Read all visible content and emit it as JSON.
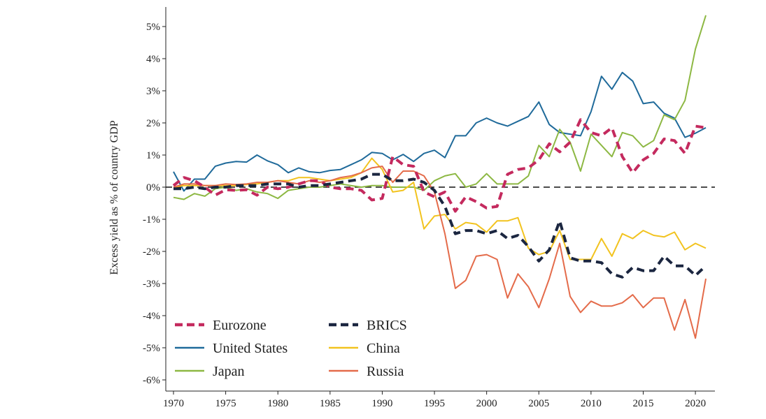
{
  "chart_data": {
    "type": "line",
    "title": "",
    "xlabel": "",
    "ylabel": "Excess yield as % of country GDP",
    "xlim": [
      1970,
      2021
    ],
    "ylim": [
      -6,
      5.5
    ],
    "x_ticks": [
      1970,
      1975,
      1980,
      1985,
      1990,
      1995,
      2000,
      2005,
      2010,
      2015,
      2020
    ],
    "x_tick_labels": [
      "1970",
      "1975",
      "1980",
      "1985",
      "1990",
      "1995",
      "2000",
      "2005",
      "2010",
      "2015",
      "2020"
    ],
    "y_ticks": [
      -6,
      -5,
      -4,
      -3,
      -2,
      -1,
      0,
      1,
      2,
      3,
      4,
      5
    ],
    "y_tick_labels": [
      "-6%",
      "-5%",
      "-4%",
      "-3%",
      "-2%",
      "-1%",
      "0%",
      "1%",
      "2%",
      "3%",
      "4%",
      "5%"
    ],
    "grid": false,
    "zero_line": "dashed",
    "legend_position": "bottom-left",
    "x": [
      1970,
      1971,
      1972,
      1973,
      1974,
      1975,
      1976,
      1977,
      1978,
      1979,
      1980,
      1981,
      1982,
      1983,
      1984,
      1985,
      1986,
      1987,
      1988,
      1989,
      1990,
      1991,
      1992,
      1993,
      1994,
      1995,
      1996,
      1997,
      1998,
      1999,
      2000,
      2001,
      2002,
      2003,
      2004,
      2005,
      2006,
      2007,
      2008,
      2009,
      2010,
      2011,
      2012,
      2013,
      2014,
      2015,
      2016,
      2017,
      2018,
      2019,
      2020,
      2021
    ],
    "series": [
      {
        "name": "United States",
        "color": "#1f6a9a",
        "dash": "solid",
        "values": [
          0.48,
          -0.12,
          0.25,
          0.25,
          0.65,
          0.75,
          0.8,
          0.78,
          1.0,
          0.82,
          0.7,
          0.45,
          0.6,
          0.48,
          0.45,
          0.52,
          0.55,
          0.7,
          0.85,
          1.08,
          1.05,
          0.85,
          1.02,
          0.8,
          1.05,
          1.15,
          0.92,
          1.6,
          1.6,
          2.0,
          2.15,
          2.0,
          1.9,
          2.05,
          2.2,
          2.65,
          1.95,
          1.7,
          1.65,
          1.6,
          2.35,
          3.45,
          3.05,
          3.57,
          3.3,
          2.6,
          2.65,
          2.3,
          2.15,
          1.55,
          1.68,
          1.85
        ]
      },
      {
        "name": "Japan",
        "color": "#8db843",
        "dash": "solid",
        "values": [
          -0.32,
          -0.38,
          -0.2,
          -0.28,
          -0.05,
          0.0,
          -0.1,
          -0.05,
          -0.15,
          -0.2,
          -0.35,
          -0.1,
          -0.05,
          0.0,
          0.0,
          0.05,
          0.1,
          0.05,
          0.0,
          0.05,
          0.05,
          0.0,
          0.0,
          0.0,
          -0.1,
          0.2,
          0.35,
          0.42,
          0.0,
          0.1,
          0.42,
          0.1,
          0.1,
          0.1,
          0.35,
          1.3,
          0.95,
          1.8,
          1.4,
          0.5,
          1.65,
          1.3,
          0.95,
          1.7,
          1.6,
          1.25,
          1.45,
          2.25,
          2.1,
          2.7,
          4.3,
          5.35
        ]
      },
      {
        "name": "China",
        "color": "#f2c31f",
        "dash": "solid",
        "values": [
          0.0,
          0.05,
          0.05,
          0.05,
          0.05,
          0.05,
          0.05,
          0.08,
          0.1,
          0.15,
          0.2,
          0.2,
          0.3,
          0.3,
          0.25,
          0.2,
          0.25,
          0.3,
          0.45,
          0.9,
          0.55,
          -0.15,
          -0.1,
          0.15,
          -1.3,
          -0.9,
          -0.85,
          -1.3,
          -1.1,
          -1.15,
          -1.4,
          -1.05,
          -1.05,
          -0.95,
          -1.9,
          -2.1,
          -2.0,
          -1.35,
          -2.25,
          -2.25,
          -2.25,
          -1.6,
          -2.15,
          -1.45,
          -1.6,
          -1.35,
          -1.5,
          -1.55,
          -1.4,
          -1.95,
          -1.75,
          -1.9
        ]
      },
      {
        "name": "Russia",
        "color": "#e46b4a",
        "dash": "solid",
        "values": [
          0.0,
          0.1,
          0.1,
          0.05,
          0.05,
          0.1,
          0.08,
          0.1,
          0.15,
          0.15,
          0.2,
          0.15,
          0.1,
          0.2,
          0.15,
          0.2,
          0.3,
          0.35,
          0.45,
          0.6,
          0.65,
          0.15,
          0.5,
          0.5,
          0.35,
          -0.15,
          -1.45,
          -3.15,
          -2.9,
          -2.15,
          -2.1,
          -2.25,
          -3.45,
          -2.7,
          -3.1,
          -3.75,
          -2.85,
          -1.75,
          -3.4,
          -3.9,
          -3.55,
          -3.7,
          -3.7,
          -3.6,
          -3.35,
          -3.75,
          -3.45,
          -3.45,
          -4.45,
          -3.5,
          -4.7,
          -2.85
        ]
      },
      {
        "name": "Eurozone",
        "color": "#c42a5e",
        "dash": "dashed",
        "values": [
          0.05,
          0.3,
          0.2,
          0.0,
          -0.25,
          -0.08,
          -0.1,
          -0.08,
          -0.25,
          0.0,
          -0.05,
          0.0,
          0.1,
          0.2,
          0.2,
          0.0,
          -0.05,
          -0.05,
          -0.1,
          -0.4,
          -0.35,
          0.95,
          0.7,
          0.65,
          -0.15,
          -0.3,
          -0.15,
          -0.75,
          -0.3,
          -0.45,
          -0.65,
          -0.6,
          0.4,
          0.55,
          0.6,
          0.85,
          1.35,
          1.1,
          1.4,
          2.1,
          1.7,
          1.6,
          1.85,
          0.95,
          0.45,
          0.85,
          1.05,
          1.5,
          1.45,
          1.05,
          1.9,
          1.85
        ]
      },
      {
        "name": "BRICS",
        "color": "#1b2640",
        "dash": "dashed",
        "values": [
          -0.05,
          -0.05,
          0.0,
          -0.05,
          0.0,
          0.0,
          0.05,
          0.05,
          0.05,
          0.1,
          0.1,
          0.1,
          0.0,
          0.05,
          0.05,
          0.1,
          0.15,
          0.2,
          0.25,
          0.4,
          0.4,
          0.2,
          0.2,
          0.25,
          0.15,
          -0.1,
          -0.6,
          -1.45,
          -1.35,
          -1.35,
          -1.45,
          -1.35,
          -1.6,
          -1.5,
          -1.85,
          -2.3,
          -1.95,
          -1.05,
          -2.2,
          -2.3,
          -2.3,
          -2.35,
          -2.7,
          -2.8,
          -2.5,
          -2.6,
          -2.6,
          -2.15,
          -2.45,
          -2.45,
          -2.75,
          -2.45
        ]
      }
    ],
    "legend": [
      {
        "label": "Eurozone",
        "color": "#c42a5e",
        "dash": "dashed"
      },
      {
        "label": "BRICS",
        "color": "#1b2640",
        "dash": "dashed"
      },
      {
        "label": "United States",
        "color": "#1f6a9a",
        "dash": "solid"
      },
      {
        "label": "China",
        "color": "#f2c31f",
        "dash": "solid"
      },
      {
        "label": "Japan",
        "color": "#8db843",
        "dash": "solid"
      },
      {
        "label": "Russia",
        "color": "#e46b4a",
        "dash": "solid"
      }
    ]
  }
}
